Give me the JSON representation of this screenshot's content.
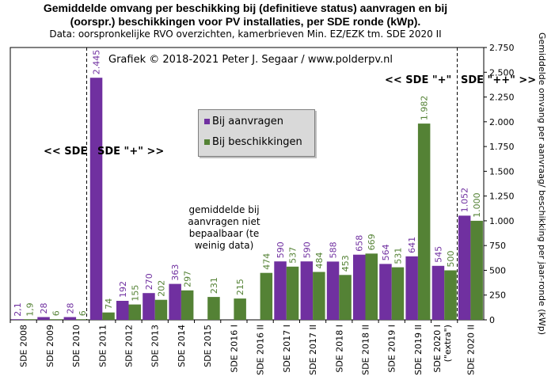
{
  "header": {
    "title_line1": "Gemiddelde omvang per beschikking  bij (definitieve status) aanvragen en bij",
    "title_line2": "(oorspr.) beschikkingen  voor PV installaties, per SDE ronde (kWp).",
    "subtitle": "Data: oorspronkelijke  RVO overzichten, kamerbrieven  Min. EZ/EZK tm. SDE 2020 II"
  },
  "annotations": {
    "credit": "Grafiek  © 2018-2021 Peter J. Segaar / www.polderpv.nl",
    "sde_left": "<< SDE",
    "sde_plus_right": "SDE \"+\" >>",
    "sde_plus_left": "<< SDE \"+\"",
    "sde_plusplus": "SDE \"++\" >>",
    "note_line1": "gemiddelde  bij",
    "note_line2": "aanvragen niet",
    "note_line3": "bepaalbaar (te",
    "note_line4": "weinig data)"
  },
  "legend": {
    "aanvragen": "Bij aanvragen",
    "beschikkingen": "Bij beschikkingen"
  },
  "colors": {
    "aanvragen": "#7030a0",
    "beschikkingen": "#548235"
  },
  "chart_data": {
    "type": "bar",
    "ylabel": "Gemiddelde omvang per aanvraag/ beschikking per jaar-ronde (kWp)",
    "ylim": [
      0,
      2750
    ],
    "yticks": [
      0,
      250,
      500,
      750,
      1000,
      1250,
      1500,
      1750,
      2000,
      2250,
      2500,
      2750
    ],
    "ytick_labels": [
      "0",
      "250",
      "500",
      "750",
      "1.000",
      "1.250",
      "1.500",
      "1.750",
      "2.000",
      "2.250",
      "2.500",
      "2.750"
    ],
    "grid": false,
    "legend": "inside-top-center",
    "categories": [
      "SDE 2008",
      "SDE 2009",
      "SDE 2010",
      "SDE 2011",
      "SDE 2012",
      "SDE 2013",
      "SDE 2014",
      "SDE 2015",
      "SDE 2016 I",
      "SDE 2016 II",
      "SDE 2017 I",
      "SDE 2017 II",
      "SDE 2018 I",
      "SDE 2018 II",
      "SDE 2019 I",
      "SDE 2019 II",
      "SDE 2020 I",
      "SDE 2020 II"
    ],
    "category_sublabels": [
      "",
      "",
      "",
      "",
      "",
      "",
      "",
      "",
      "",
      "",
      "",
      "",
      "",
      "",
      "",
      "",
      "(\"extra\")",
      ""
    ],
    "series": [
      {
        "name": "Bij aanvragen",
        "values": [
          2.1,
          28,
          28,
          2445,
          192,
          270,
          363,
          null,
          null,
          null,
          590,
          590,
          588,
          658,
          564,
          641,
          545,
          1052
        ],
        "labels": [
          "2,1",
          "28",
          "28",
          "2.445",
          "192",
          "270",
          "363",
          "",
          "",
          "",
          "590",
          "590",
          "588",
          "658",
          "564",
          "641",
          "545",
          "1.052"
        ]
      },
      {
        "name": "Bij beschikkingen",
        "values": [
          1.9,
          6,
          6,
          74,
          155,
          202,
          297,
          231,
          215,
          474,
          537,
          484,
          453,
          669,
          531,
          1982,
          500,
          1000
        ],
        "labels": [
          "1,9",
          "6",
          "6",
          "74",
          "155",
          "202",
          "297",
          "231",
          "215",
          "474",
          "537",
          "484",
          "453",
          "669",
          "531",
          "1.982",
          "500",
          "1.000"
        ]
      }
    ]
  }
}
